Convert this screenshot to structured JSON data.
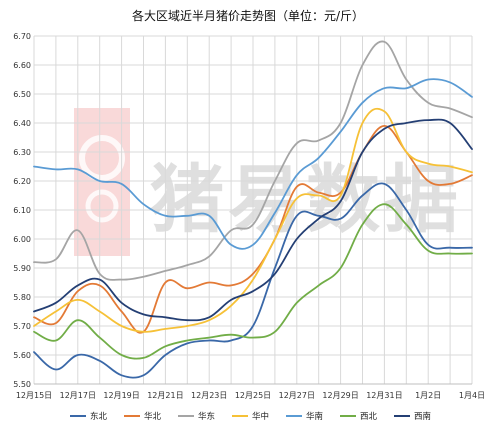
{
  "chart_data": {
    "type": "line",
    "title": "各大区域近半月猪价走势图（单位：元/斤）",
    "xlabel": "",
    "ylabel": "",
    "ylim": [
      5.5,
      6.7
    ],
    "yticks": [
      "5.50",
      "5.60",
      "5.70",
      "5.80",
      "5.90",
      "6.00",
      "6.10",
      "6.20",
      "6.30",
      "6.40",
      "6.50",
      "6.60",
      "6.70"
    ],
    "categories": [
      "12月15日",
      "12月16日",
      "12月17日",
      "12月18日",
      "12月19日",
      "12月20日",
      "12月21日",
      "12月22日",
      "12月23日",
      "12月24日",
      "12月25日",
      "12月26日",
      "12月27日",
      "12月28日",
      "12月29日",
      "12月30日",
      "12月31日",
      "1月1日",
      "1月2日",
      "1月3日",
      "1月4日"
    ],
    "xtick_labels": [
      "12月15日",
      "12月17日",
      "12月19日",
      "12月21日",
      "12月23日",
      "12月25日",
      "12月27日",
      "12月29日",
      "12月31日",
      "1月2日",
      "1月4日"
    ],
    "grid": true,
    "legend_position": "bottom",
    "watermark": "猪易数据",
    "series": [
      {
        "name": "东北",
        "color": "#3a68a8",
        "values": [
          5.61,
          5.55,
          5.6,
          5.58,
          5.53,
          5.53,
          5.6,
          5.64,
          5.65,
          5.65,
          5.7,
          5.9,
          6.08,
          6.08,
          6.07,
          6.15,
          6.19,
          6.1,
          5.98,
          5.97,
          5.97
        ]
      },
      {
        "name": "华北",
        "color": "#e37a36",
        "values": [
          5.73,
          5.71,
          5.82,
          5.84,
          5.75,
          5.68,
          5.85,
          5.83,
          5.85,
          5.84,
          5.88,
          6.0,
          6.18,
          6.16,
          6.16,
          6.3,
          6.39,
          6.3,
          6.2,
          6.19,
          6.22
        ]
      },
      {
        "name": "华东",
        "color": "#a5a5a5",
        "values": [
          5.92,
          5.93,
          6.03,
          5.88,
          5.86,
          5.87,
          5.89,
          5.91,
          5.94,
          6.03,
          6.05,
          6.2,
          6.33,
          6.34,
          6.4,
          6.6,
          6.68,
          6.55,
          6.47,
          6.45,
          6.42
        ]
      },
      {
        "name": "华中",
        "color": "#f6c137",
        "values": [
          5.7,
          5.75,
          5.79,
          5.75,
          5.7,
          5.68,
          5.69,
          5.7,
          5.72,
          5.77,
          5.86,
          6.0,
          6.14,
          6.15,
          6.15,
          6.4,
          6.44,
          6.3,
          6.26,
          6.25,
          6.23
        ]
      },
      {
        "name": "华南",
        "color": "#5a9bd4",
        "values": [
          6.25,
          6.24,
          6.24,
          6.2,
          6.19,
          6.12,
          6.08,
          6.08,
          6.08,
          5.98,
          5.98,
          6.09,
          6.22,
          6.28,
          6.37,
          6.47,
          6.52,
          6.52,
          6.55,
          6.54,
          6.49
        ]
      },
      {
        "name": "西北",
        "color": "#71ad47",
        "values": [
          5.68,
          5.65,
          5.72,
          5.66,
          5.6,
          5.59,
          5.63,
          5.65,
          5.66,
          5.67,
          5.66,
          5.68,
          5.78,
          5.84,
          5.9,
          6.05,
          6.12,
          6.05,
          5.96,
          5.95,
          5.95
        ]
      },
      {
        "name": "西南",
        "color": "#243f74",
        "values": [
          5.75,
          5.78,
          5.84,
          5.86,
          5.78,
          5.74,
          5.73,
          5.72,
          5.73,
          5.79,
          5.82,
          5.88,
          6.0,
          6.07,
          6.13,
          6.3,
          6.38,
          6.4,
          6.41,
          6.4,
          6.31
        ]
      }
    ]
  }
}
